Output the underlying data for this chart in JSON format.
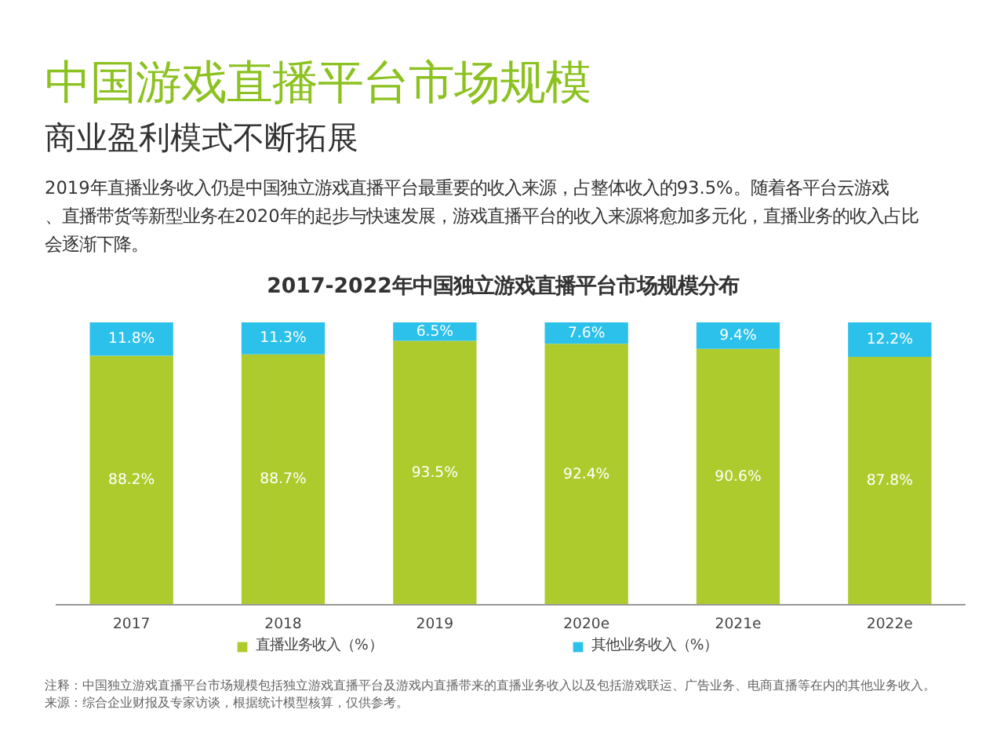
{
  "chart_data": {
    "type": "bar",
    "title": "中国游戏直播平台市场规模",
    "subtitle": "商业盈利模式不断拓展",
    "annotations": [
      "2019年直播业务收入仍是中国独立游戏直播平台最重要的收入来源，占整体收入的93.5%。随着各平台云游戏、直播带货等新型业务在2020年的起步与快速发展，游戏直播平台的收入来源将愈加多元化，直播业务的收入占比会逐渐下降。",
      "2017-2022年中国独立游戏直播平台市场规模分布",
      "注释：中国独立游戏直播平台市场规模包括独立游戏直播平台及游戏内直播带来的直播业务收入以及包括游戏联运、广告业务、电商直播等在内的其他业务收入。",
      "来源：综合企业财报及专家访谈，根据统计模型核算，仅供参考。"
    ],
    "categories": [
      "2017",
      "2018",
      "2019",
      "2020e",
      "2021e",
      "2022e"
    ],
    "stacked": true,
    "legend": "bottom",
    "series": [
      {
        "name": "直播业务收入（%）",
        "color": "#aecb2e",
        "values": [
          88.2,
          88.7,
          93.5,
          92.4,
          90.6,
          87.8
        ],
        "value_labels": [
          "88.2%",
          "88.7%",
          "93.5%",
          "92.4%",
          "90.6%",
          "87.8%"
        ]
      },
      {
        "name": "其他业务收入（%）",
        "color": "#2cc1ea",
        "values": [
          11.8,
          11.3,
          6.5,
          7.6,
          9.4,
          12.2
        ],
        "value_labels": [
          "11.8%",
          "11.3%",
          "6.5%",
          "7.6%",
          "9.4%",
          "12.2%"
        ]
      }
    ]
  }
}
